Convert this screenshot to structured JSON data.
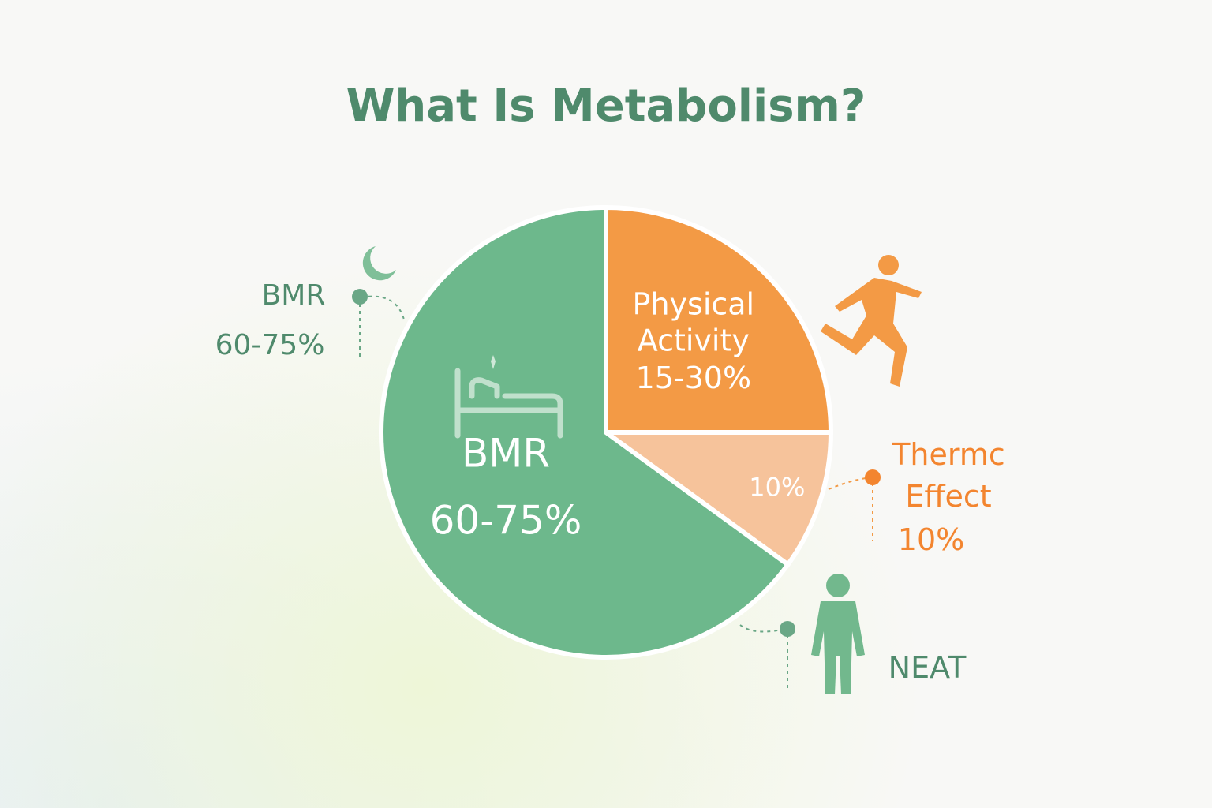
{
  "chart_data": {
    "type": "pie",
    "title": "What Is Metabolism?",
    "categories": [
      "Physical Activity",
      "Thermc Effect",
      "BMR"
    ],
    "values": [
      25,
      10,
      65
    ],
    "value_labels": [
      "15-30%",
      "10%",
      "60-75%"
    ],
    "colors": [
      "#f39a45",
      "#f6c39b",
      "#6db88c"
    ],
    "annotations": [
      "NEAT"
    ]
  }
}
